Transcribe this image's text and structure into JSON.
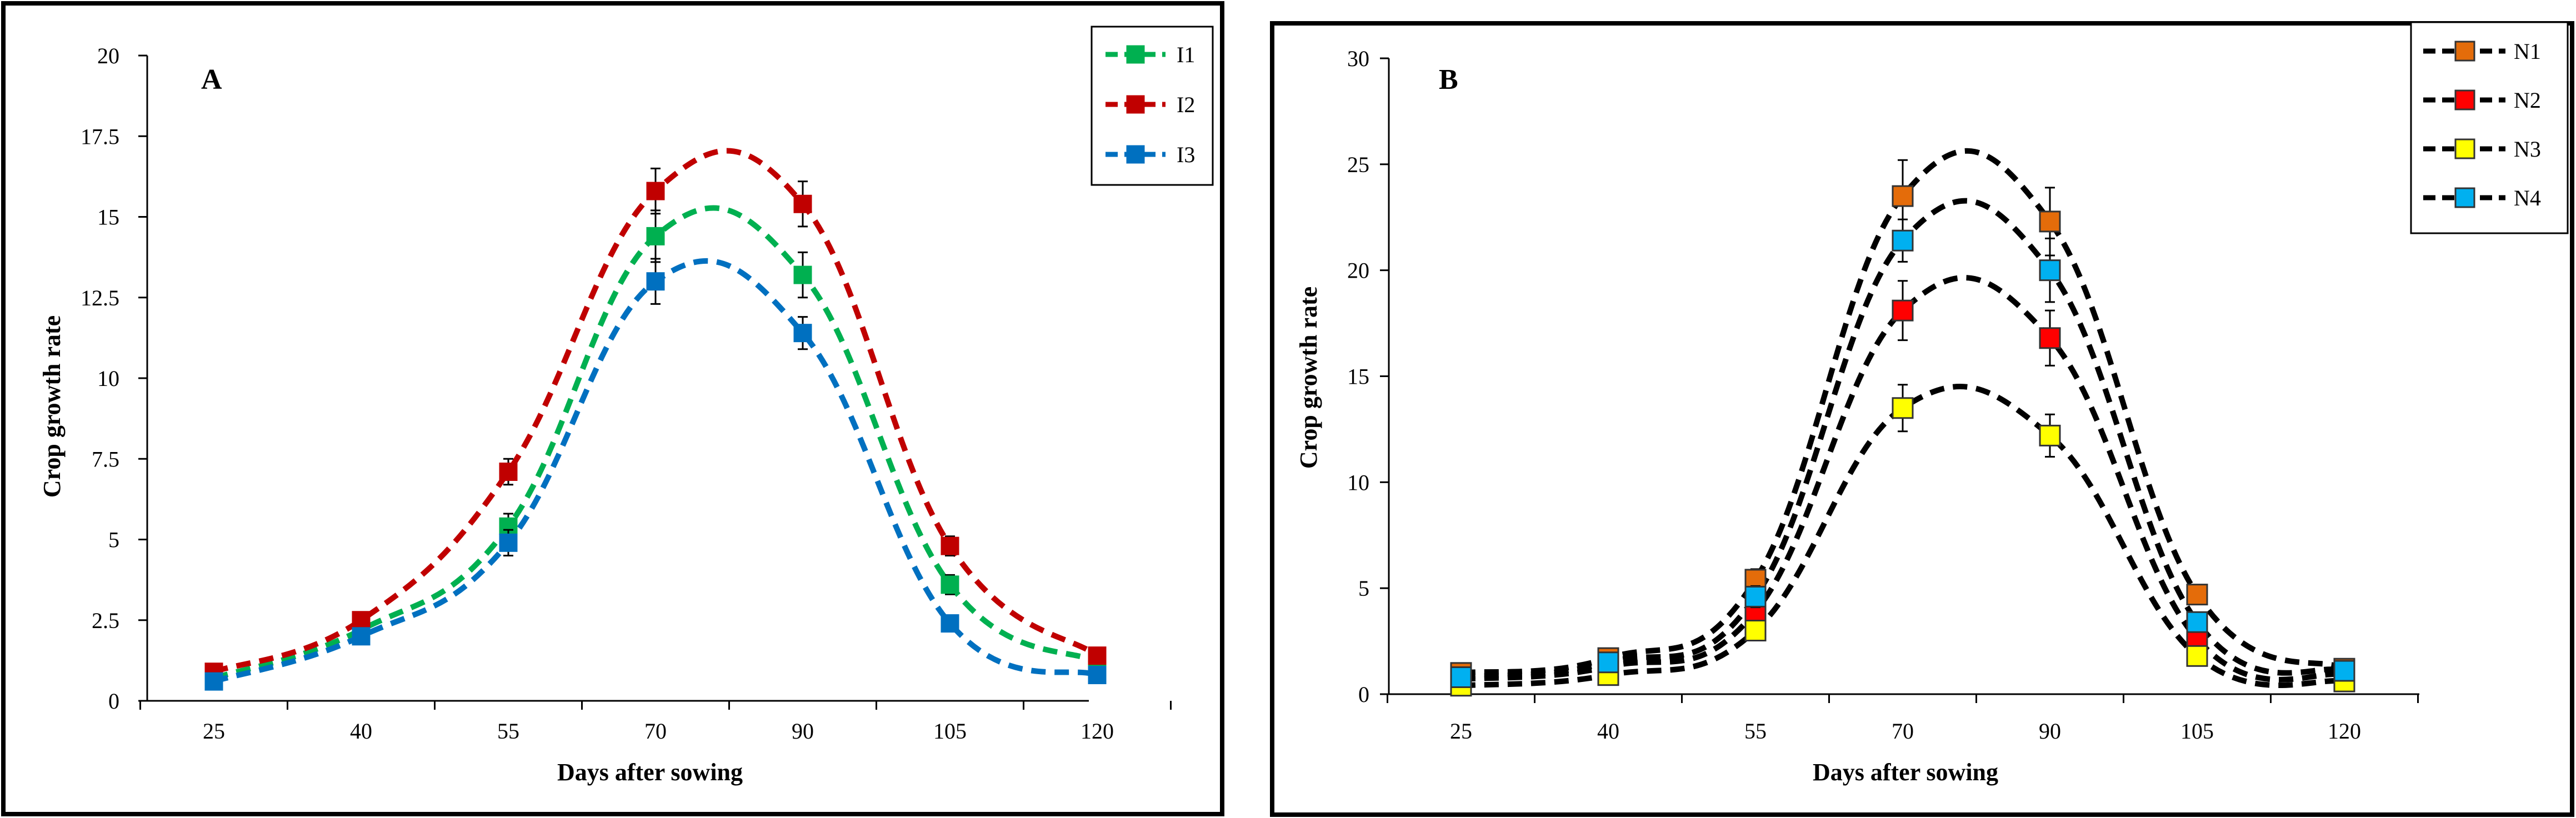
{
  "chart_data": [
    {
      "type": "line",
      "panel_label": "A",
      "title": "",
      "xlabel": "Days after sowing",
      "ylabel": "Crop growth rate",
      "categories": [
        "25",
        "40",
        "55",
        "70",
        "90",
        "105",
        "120"
      ],
      "y_tick_labels": [
        "0",
        "2.5",
        "5",
        "7.5",
        "10",
        "12.5",
        "15",
        "17.5",
        "20"
      ],
      "ylim": [
        0,
        20
      ],
      "grid": false,
      "legend_position": "top-right",
      "series": [
        {
          "name": "I1",
          "color": "#00b050",
          "values": [
            0.7,
            2.2,
            5.4,
            14.4,
            13.2,
            3.6,
            1.2
          ],
          "errors": [
            0.1,
            0.2,
            0.4,
            0.8,
            0.7,
            0.3,
            0.1
          ]
        },
        {
          "name": "I2",
          "color": "#c00000",
          "values": [
            0.9,
            2.5,
            7.1,
            15.8,
            15.4,
            4.8,
            1.4
          ],
          "errors": [
            0.1,
            0.2,
            0.4,
            0.7,
            0.7,
            0.3,
            0.1
          ]
        },
        {
          "name": "I3",
          "color": "#0070c0",
          "values": [
            0.6,
            2.0,
            4.9,
            13.0,
            11.4,
            2.4,
            0.8
          ],
          "errors": [
            0.1,
            0.2,
            0.4,
            0.7,
            0.5,
            0.2,
            0.1
          ]
        }
      ]
    },
    {
      "type": "line",
      "panel_label": "B",
      "title": "",
      "xlabel": "Days after sowing",
      "ylabel": "Crop growth rate",
      "categories": [
        "25",
        "40",
        "55",
        "70",
        "90",
        "105",
        "120"
      ],
      "y_tick_labels": [
        "0",
        "5",
        "10",
        "15",
        "20",
        "25",
        "30"
      ],
      "ylim": [
        0,
        30
      ],
      "grid": false,
      "legend_position": "top-right",
      "line_color": "#000000",
      "series": [
        {
          "name": "N1",
          "color": "#e46c0a",
          "values": [
            1.0,
            1.7,
            5.4,
            23.5,
            22.3,
            4.7,
            1.2
          ],
          "errors": [
            0.2,
            0.3,
            0.5,
            1.7,
            1.6,
            0.4,
            0.2
          ]
        },
        {
          "name": "N2",
          "color": "#ff0000",
          "values": [
            0.7,
            1.3,
            3.9,
            18.1,
            16.8,
            2.6,
            0.9
          ],
          "errors": [
            0.2,
            0.3,
            0.5,
            1.4,
            1.3,
            0.3,
            0.2
          ]
        },
        {
          "name": "N3",
          "color": "#ffff00",
          "values": [
            0.4,
            0.9,
            3.0,
            13.5,
            12.2,
            1.8,
            0.6
          ],
          "errors": [
            0.2,
            0.3,
            0.4,
            1.1,
            1.0,
            0.3,
            0.2
          ]
        },
        {
          "name": "N4",
          "color": "#00b0f0",
          "values": [
            0.8,
            1.5,
            4.6,
            21.4,
            20.0,
            3.4,
            1.1
          ],
          "errors": [
            0.2,
            0.3,
            0.5,
            1.0,
            1.5,
            0.4,
            0.2
          ]
        }
      ]
    }
  ]
}
